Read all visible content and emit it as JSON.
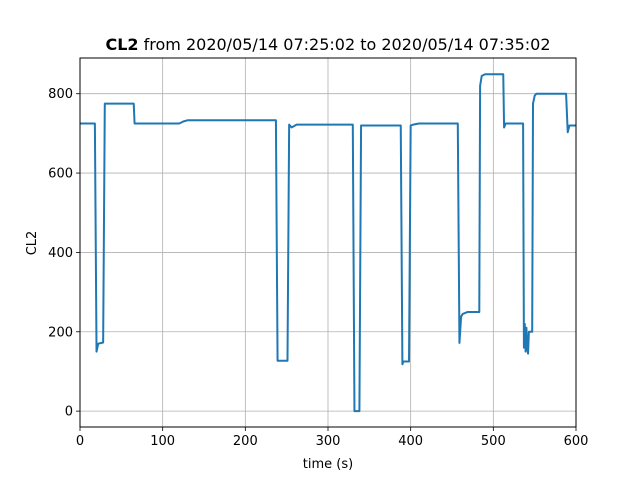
{
  "chart_data": {
    "type": "line",
    "title_bold": "CL2",
    "title_rest": " from 2020/05/14 07:25:02 to 2020/05/14 07:35:02",
    "xlabel": "time (s)",
    "ylabel": "CL2",
    "xlim": [
      0,
      600
    ],
    "ylim": [
      -40,
      890
    ],
    "xticks": [
      0,
      100,
      200,
      300,
      400,
      500,
      600
    ],
    "yticks": [
      0,
      200,
      400,
      600,
      800
    ],
    "grid": true,
    "colors": {
      "line": "#1f77b4",
      "grid": "#b0b0b0",
      "axes": "#000000"
    },
    "series": [
      {
        "points": [
          [
            0,
            725
          ],
          [
            18,
            725
          ],
          [
            20,
            150
          ],
          [
            21,
            160
          ],
          [
            22,
            170
          ],
          [
            28,
            173
          ],
          [
            30,
            775
          ],
          [
            65,
            775
          ],
          [
            66,
            725
          ],
          [
            120,
            725
          ],
          [
            125,
            730
          ],
          [
            130,
            733
          ],
          [
            237,
            733
          ],
          [
            239,
            127
          ],
          [
            251,
            127
          ],
          [
            253,
            722
          ],
          [
            256,
            715
          ],
          [
            262,
            722
          ],
          [
            330,
            722
          ],
          [
            332,
            0
          ],
          [
            338,
            0
          ],
          [
            340,
            720
          ],
          [
            388,
            720
          ],
          [
            390,
            118
          ],
          [
            391,
            125
          ],
          [
            398,
            125
          ],
          [
            400,
            720
          ],
          [
            403,
            722
          ],
          [
            410,
            725
          ],
          [
            457,
            725
          ],
          [
            459,
            172
          ],
          [
            461,
            238
          ],
          [
            463,
            245
          ],
          [
            469,
            250
          ],
          [
            483,
            250
          ],
          [
            484,
            820
          ],
          [
            486,
            845
          ],
          [
            490,
            849
          ],
          [
            512,
            849
          ],
          [
            513,
            715
          ],
          [
            515,
            725
          ],
          [
            536,
            725
          ],
          [
            537,
            160
          ],
          [
            538,
            220
          ],
          [
            539,
            150
          ],
          [
            540,
            210
          ],
          [
            541,
            160
          ],
          [
            542,
            145
          ],
          [
            543,
            200
          ],
          [
            547,
            200
          ],
          [
            548,
            775
          ],
          [
            550,
            795
          ],
          [
            552,
            800
          ],
          [
            588,
            800
          ],
          [
            590,
            703
          ],
          [
            592,
            720
          ],
          [
            600,
            720
          ]
        ]
      }
    ]
  }
}
